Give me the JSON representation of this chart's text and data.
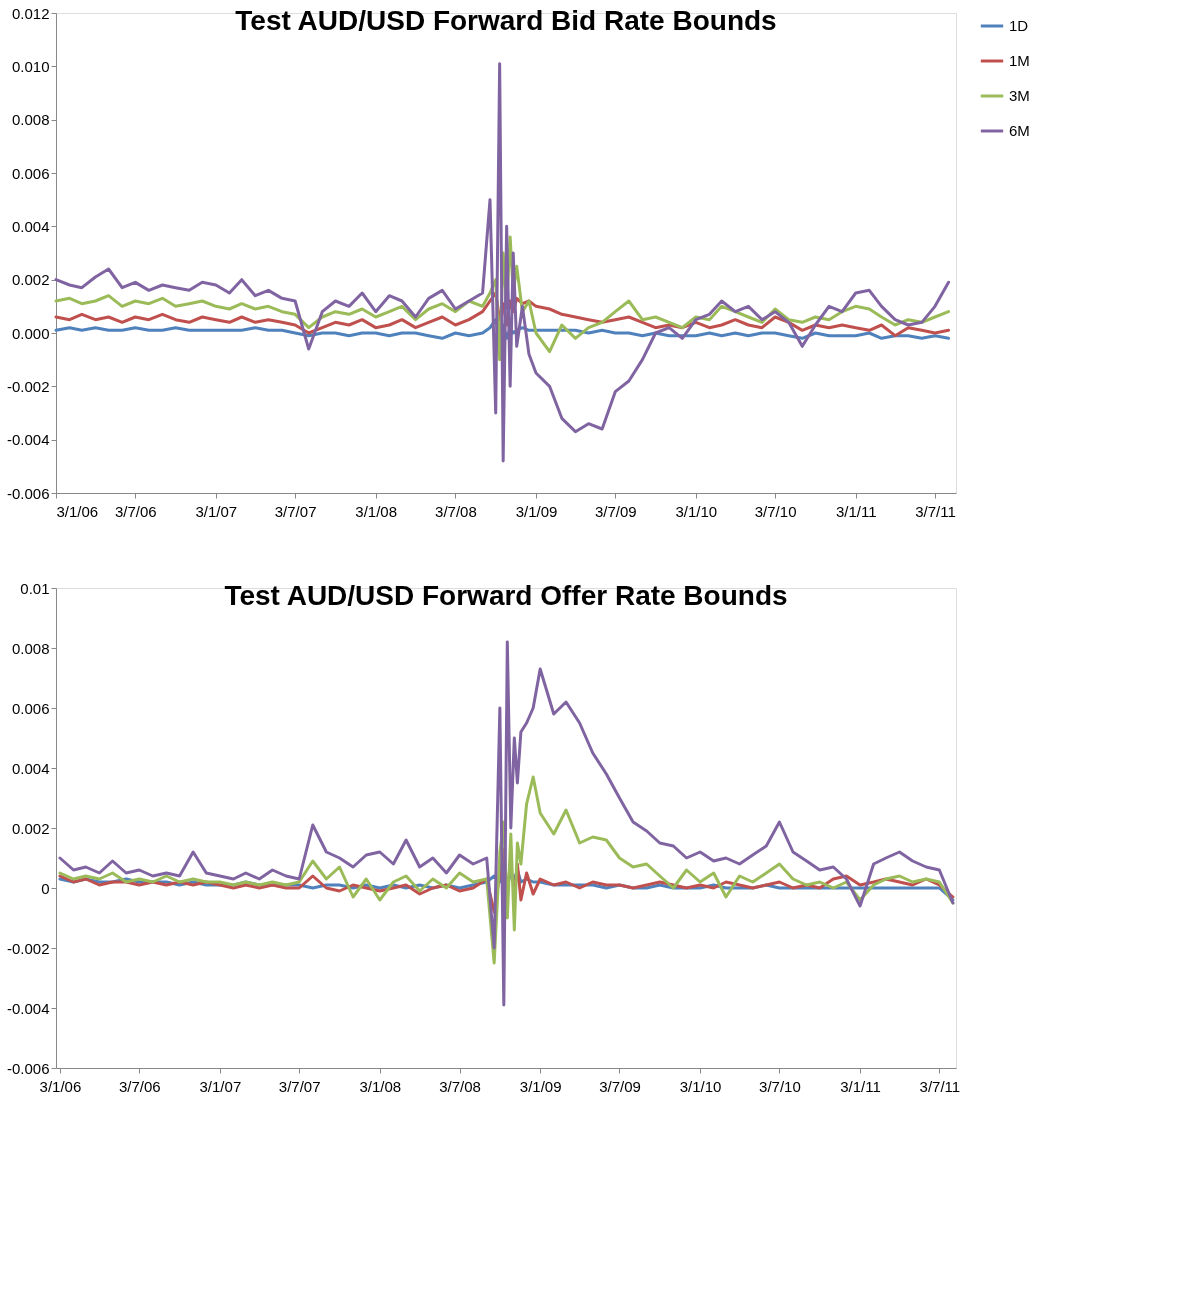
{
  "chart_data": [
    {
      "type": "line",
      "title": "Test AUD/USD Forward Bid Rate Bounds",
      "x": [
        "2006-01-03",
        "2006-02-03",
        "2006-03-03",
        "2006-04-03",
        "2006-05-03",
        "2006-06-03",
        "2006-07-03",
        "2006-08-03",
        "2006-09-03",
        "2006-10-03",
        "2006-11-03",
        "2006-12-03",
        "2007-01-03",
        "2007-02-03",
        "2007-03-03",
        "2007-04-03",
        "2007-05-03",
        "2007-06-03",
        "2007-07-03",
        "2007-08-03",
        "2007-09-03",
        "2007-10-03",
        "2007-11-03",
        "2007-12-03",
        "2008-01-03",
        "2008-02-03",
        "2008-03-03",
        "2008-04-03",
        "2008-05-03",
        "2008-06-03",
        "2008-07-03",
        "2008-08-03",
        "2008-09-03",
        "2008-09-20",
        "2008-10-03",
        "2008-10-12",
        "2008-10-20",
        "2008-10-28",
        "2008-11-05",
        "2008-11-12",
        "2008-11-20",
        "2008-12-03",
        "2008-12-18",
        "2009-01-03",
        "2009-02-03",
        "2009-03-03",
        "2009-04-03",
        "2009-05-03",
        "2009-06-03",
        "2009-07-03",
        "2009-08-03",
        "2009-09-03",
        "2009-10-03",
        "2009-11-03",
        "2009-12-03",
        "2010-01-03",
        "2010-02-03",
        "2010-03-03",
        "2010-04-03",
        "2010-05-03",
        "2010-06-03",
        "2010-07-03",
        "2010-08-03",
        "2010-09-03",
        "2010-10-03",
        "2010-11-03",
        "2010-12-03",
        "2011-01-03",
        "2011-02-03",
        "2011-03-03",
        "2011-04-03",
        "2011-05-03",
        "2011-06-03",
        "2011-07-03",
        "2011-08-03"
      ],
      "series": [
        {
          "name": "1D",
          "color": "#4f81bd",
          "values": [
            0.0001,
            0.0002,
            0.0001,
            0.0002,
            0.0001,
            0.0001,
            0.0002,
            0.0001,
            0.0001,
            0.0002,
            0.0001,
            0.0001,
            0.0001,
            0.0001,
            0.0001,
            0.0002,
            0.0001,
            0.0001,
            0.0,
            -0.0001,
            0.0,
            0.0,
            -0.0001,
            0.0,
            0.0,
            -0.0001,
            0.0,
            0.0,
            -0.0001,
            -0.0002,
            0.0,
            -0.0001,
            0.0,
            0.0002,
            0.0005,
            -0.0003,
            0.0003,
            -0.0002,
            0.0002,
            0.0,
            0.0001,
            0.0002,
            0.0001,
            0.0001,
            0.0001,
            0.0001,
            0.0001,
            0.0,
            0.0001,
            0.0,
            0.0,
            -0.0001,
            0.0,
            -0.0001,
            -0.0001,
            -0.0001,
            0.0,
            -0.0001,
            0.0,
            -0.0001,
            0.0,
            0.0,
            -0.0001,
            -0.0002,
            0.0,
            -0.0001,
            -0.0001,
            -0.0001,
            0.0,
            -0.0002,
            -0.0001,
            -0.0001,
            -0.0002,
            -0.0001,
            -0.0002
          ]
        },
        {
          "name": "1M",
          "color": "#c0504d",
          "values": [
            0.0006,
            0.0005,
            0.0007,
            0.0005,
            0.0006,
            0.0004,
            0.0006,
            0.0005,
            0.0007,
            0.0005,
            0.0004,
            0.0006,
            0.0005,
            0.0004,
            0.0006,
            0.0004,
            0.0005,
            0.0004,
            0.0003,
            0.0,
            0.0002,
            0.0004,
            0.0003,
            0.0005,
            0.0002,
            0.0003,
            0.0005,
            0.0002,
            0.0004,
            0.0006,
            0.0003,
            0.0005,
            0.0008,
            0.0012,
            0.0015,
            0.0005,
            0.0011,
            0.0003,
            0.0012,
            0.0008,
            0.0013,
            0.0011,
            0.0012,
            0.001,
            0.0009,
            0.0007,
            0.0006,
            0.0005,
            0.0004,
            0.0005,
            0.0006,
            0.0004,
            0.0002,
            0.0003,
            0.0002,
            0.0004,
            0.0002,
            0.0003,
            0.0005,
            0.0003,
            0.0002,
            0.0006,
            0.0004,
            0.0001,
            0.0003,
            0.0002,
            0.0003,
            0.0002,
            0.0001,
            0.0003,
            -0.0001,
            0.0002,
            0.0001,
            0.0,
            0.0001
          ]
        },
        {
          "name": "3M",
          "color": "#9bbb59",
          "values": [
            0.0012,
            0.0013,
            0.0011,
            0.0012,
            0.0014,
            0.001,
            0.0012,
            0.0011,
            0.0013,
            0.001,
            0.0011,
            0.0012,
            0.001,
            0.0009,
            0.0011,
            0.0009,
            0.001,
            0.0008,
            0.0007,
            0.0002,
            0.0006,
            0.0008,
            0.0007,
            0.0009,
            0.0006,
            0.0008,
            0.001,
            0.0005,
            0.0009,
            0.0011,
            0.0008,
            0.0012,
            0.001,
            0.0015,
            0.002,
            -0.001,
            0.003,
            0.001,
            0.0036,
            0.0015,
            0.0025,
            0.0008,
            0.0012,
            0.0,
            -0.0007,
            0.0003,
            -0.0002,
            0.0002,
            0.0004,
            0.0008,
            0.0012,
            0.0005,
            0.0006,
            0.0004,
            0.0002,
            0.0006,
            0.0005,
            0.001,
            0.0008,
            0.0006,
            0.0004,
            0.0009,
            0.0005,
            0.0004,
            0.0006,
            0.0005,
            0.0008,
            0.001,
            0.0009,
            0.0006,
            0.0003,
            0.0005,
            0.0004,
            0.0006,
            0.0008
          ]
        },
        {
          "name": "6M",
          "color": "#8064a2",
          "values": [
            0.002,
            0.0018,
            0.0017,
            0.0021,
            0.0024,
            0.0017,
            0.0019,
            0.0016,
            0.0018,
            0.0017,
            0.0016,
            0.0019,
            0.0018,
            0.0015,
            0.002,
            0.0014,
            0.0016,
            0.0013,
            0.0012,
            -0.0006,
            0.0008,
            0.0012,
            0.001,
            0.0015,
            0.0008,
            0.0014,
            0.0012,
            0.0006,
            0.0013,
            0.0016,
            0.0009,
            0.0012,
            0.0015,
            0.005,
            -0.003,
            0.0101,
            -0.0048,
            0.004,
            -0.002,
            0.003,
            -0.0005,
            0.001,
            -0.0008,
            -0.0015,
            -0.002,
            -0.0032,
            -0.0037,
            -0.0034,
            -0.0036,
            -0.0022,
            -0.0018,
            -0.001,
            0.0,
            0.0002,
            -0.0002,
            0.0005,
            0.0007,
            0.0012,
            0.0008,
            0.001,
            0.0005,
            0.0008,
            0.0004,
            -0.0005,
            0.0003,
            0.001,
            0.0008,
            0.0015,
            0.0016,
            0.001,
            0.0005,
            0.0003,
            0.0004,
            0.001,
            0.0019
          ]
        }
      ],
      "xlim": [
        "2006-01-03",
        "2011-08-20"
      ],
      "xticks": [
        {
          "value": "2006-01-03",
          "label": "3/1/06"
        },
        {
          "value": "2006-07-03",
          "label": "3/7/06"
        },
        {
          "value": "2007-01-03",
          "label": "3/1/07"
        },
        {
          "value": "2007-07-03",
          "label": "3/7/07"
        },
        {
          "value": "2008-01-03",
          "label": "3/1/08"
        },
        {
          "value": "2008-07-03",
          "label": "3/7/08"
        },
        {
          "value": "2009-01-03",
          "label": "3/1/09"
        },
        {
          "value": "2009-07-03",
          "label": "3/7/09"
        },
        {
          "value": "2010-01-03",
          "label": "3/1/10"
        },
        {
          "value": "2010-07-03",
          "label": "3/7/10"
        },
        {
          "value": "2011-01-03",
          "label": "3/1/11"
        },
        {
          "value": "2011-07-03",
          "label": "3/7/11"
        }
      ],
      "ylim": [
        -0.006,
        0.012
      ],
      "yticks": [
        {
          "value": -0.006,
          "label": "-0.006"
        },
        {
          "value": -0.004,
          "label": "-0.004"
        },
        {
          "value": -0.002,
          "label": "-0.002"
        },
        {
          "value": 0,
          "label": "0.000"
        },
        {
          "value": 0.002,
          "label": "0.002"
        },
        {
          "value": 0.004,
          "label": "0.004"
        },
        {
          "value": 0.006,
          "label": "0.006"
        },
        {
          "value": 0.008,
          "label": "0.008"
        },
        {
          "value": 0.01,
          "label": "0.010"
        },
        {
          "value": 0.012,
          "label": "0.012"
        }
      ],
      "grid": false,
      "legend": "right"
    },
    {
      "type": "line",
      "title": "Test AUD/USD Forward Offer Rate Bounds",
      "x": [
        "2006-01-03",
        "2006-02-03",
        "2006-03-03",
        "2006-04-03",
        "2006-05-03",
        "2006-06-03",
        "2006-07-03",
        "2006-08-03",
        "2006-09-03",
        "2006-10-03",
        "2006-11-03",
        "2006-12-03",
        "2007-01-03",
        "2007-02-03",
        "2007-03-03",
        "2007-04-03",
        "2007-05-03",
        "2007-06-03",
        "2007-07-03",
        "2007-08-03",
        "2007-09-03",
        "2007-10-03",
        "2007-11-03",
        "2007-12-03",
        "2008-01-03",
        "2008-02-03",
        "2008-03-03",
        "2008-04-03",
        "2008-05-03",
        "2008-06-03",
        "2008-07-03",
        "2008-08-03",
        "2008-09-03",
        "2008-09-20",
        "2008-10-03",
        "2008-10-12",
        "2008-10-20",
        "2008-10-28",
        "2008-11-05",
        "2008-11-12",
        "2008-11-20",
        "2008-12-03",
        "2008-12-18",
        "2009-01-03",
        "2009-02-03",
        "2009-03-03",
        "2009-04-03",
        "2009-05-03",
        "2009-06-03",
        "2009-07-03",
        "2009-08-03",
        "2009-09-03",
        "2009-10-03",
        "2009-11-03",
        "2009-12-03",
        "2010-01-03",
        "2010-02-03",
        "2010-03-03",
        "2010-04-03",
        "2010-05-03",
        "2010-06-03",
        "2010-07-03",
        "2010-08-03",
        "2010-09-03",
        "2010-10-03",
        "2010-11-03",
        "2010-12-03",
        "2011-01-03",
        "2011-02-03",
        "2011-03-03",
        "2011-04-03",
        "2011-05-03",
        "2011-06-03",
        "2011-07-03",
        "2011-08-03"
      ],
      "series": [
        {
          "name": "1D",
          "color": "#4f81bd",
          "values": [
            0.0003,
            0.0002,
            0.0003,
            0.0002,
            0.0002,
            0.0003,
            0.0002,
            0.0002,
            0.0002,
            0.0001,
            0.0002,
            0.0001,
            0.0001,
            0.0001,
            0.0002,
            0.0001,
            0.0001,
            0.0001,
            0.0001,
            0.0,
            0.0001,
            0.0001,
            0.0,
            0.0001,
            0.0,
            0.0001,
            0.0,
            0.0001,
            0.0,
            0.0001,
            0.0,
            0.0001,
            0.0002,
            0.0004,
            0.0002,
            0.0008,
            0.0001,
            0.0005,
            0.0003,
            0.0006,
            0.0002,
            0.0003,
            0.0002,
            0.0002,
            0.0001,
            0.0001,
            0.0001,
            0.0001,
            0.0,
            0.0001,
            0.0,
            0.0,
            0.0001,
            0.0,
            0.0,
            0.0,
            0.0001,
            0.0,
            0.0,
            0.0,
            0.0001,
            0.0,
            0.0,
            0.0,
            0.0,
            0.0,
            0.0,
            0.0,
            0.0,
            0.0,
            0.0,
            0.0,
            0.0,
            0.0,
            -0.0004
          ]
        },
        {
          "name": "1M",
          "color": "#c0504d",
          "values": [
            0.0004,
            0.0002,
            0.0003,
            0.0001,
            0.0002,
            0.0002,
            0.0001,
            0.0002,
            0.0001,
            0.0002,
            0.0001,
            0.0002,
            0.0001,
            0.0,
            0.0001,
            0.0,
            0.0001,
            0.0,
            0.0,
            0.0004,
            0.0,
            -0.0001,
            0.0001,
            0.0,
            -0.0001,
            0.0,
            0.0001,
            -0.0002,
            0.0,
            0.0001,
            -0.0001,
            0.0,
            0.0003,
            -0.0008,
            0.0005,
            0.0013,
            -0.0002,
            null,
            -0.0003,
            0.0008,
            -0.0004,
            0.0005,
            -0.0002,
            0.0003,
            0.0001,
            0.0002,
            0.0,
            0.0002,
            0.0001,
            0.0001,
            0.0,
            0.0001,
            0.0002,
            0.0001,
            0.0,
            0.0001,
            0.0,
            0.0002,
            0.0001,
            0.0,
            0.0001,
            0.0002,
            0.0,
            0.0001,
            0.0,
            0.0003,
            0.0004,
            0.0001,
            0.0002,
            0.0003,
            0.0002,
            0.0001,
            0.0003,
            0.0001,
            -0.0003
          ]
        },
        {
          "name": "3M",
          "color": "#9bbb59",
          "values": [
            0.0005,
            0.0003,
            0.0004,
            0.0003,
            0.0005,
            0.0002,
            0.0003,
            0.0002,
            0.0004,
            0.0002,
            0.0003,
            0.0002,
            0.0002,
            0.0001,
            0.0002,
            0.0001,
            0.0002,
            0.0001,
            0.0002,
            0.0009,
            0.0003,
            0.0007,
            -0.0003,
            0.0003,
            -0.0004,
            0.0002,
            0.0004,
            -0.0001,
            0.0003,
            0.0,
            0.0005,
            0.0002,
            0.0003,
            -0.0025,
            0.0012,
            0.0022,
            -0.001,
            0.0018,
            -0.0014,
            0.0015,
            0.0008,
            0.0028,
            0.0037,
            0.0025,
            0.0018,
            0.0026,
            0.0015,
            0.0017,
            0.0016,
            0.001,
            0.0007,
            0.0008,
            0.0004,
            0.0,
            0.0006,
            0.0002,
            0.0005,
            -0.0003,
            0.0004,
            0.0002,
            0.0005,
            0.0008,
            0.0003,
            0.0001,
            0.0002,
            0.0,
            0.0002,
            -0.0004,
            0.0001,
            0.0003,
            0.0004,
            0.0002,
            0.0003,
            0.0002,
            -0.0005
          ]
        },
        {
          "name": "6M",
          "color": "#8064a2",
          "values": [
            0.001,
            0.0006,
            0.0007,
            0.0005,
            0.0009,
            0.0005,
            0.0006,
            0.0004,
            0.0005,
            0.0004,
            0.0012,
            0.0005,
            0.0004,
            0.0003,
            0.0005,
            0.0003,
            0.0006,
            0.0004,
            0.0003,
            0.0021,
            0.0012,
            0.001,
            0.0007,
            0.0011,
            0.0012,
            0.0008,
            0.0016,
            0.0007,
            0.001,
            0.0005,
            0.0011,
            0.0008,
            0.001,
            -0.002,
            0.006,
            -0.0039,
            0.0082,
            0.002,
            0.005,
            0.0035,
            0.0052,
            0.0055,
            0.006,
            0.0073,
            0.0058,
            0.0062,
            0.0055,
            0.0045,
            0.0038,
            0.003,
            0.0022,
            0.0019,
            0.0015,
            0.0014,
            0.001,
            0.0012,
            0.0009,
            0.001,
            0.0008,
            0.0011,
            0.0014,
            0.0022,
            0.0012,
            0.0009,
            0.0006,
            0.0007,
            0.0003,
            -0.0006,
            0.0008,
            0.001,
            0.0012,
            0.0009,
            0.0007,
            0.0006,
            -0.0005
          ]
        }
      ],
      "xlim": [
        "2005-12-25",
        "2011-08-10"
      ],
      "xticks": [
        {
          "value": "2006-01-03",
          "label": "3/1/06"
        },
        {
          "value": "2006-07-03",
          "label": "3/7/06"
        },
        {
          "value": "2007-01-03",
          "label": "3/1/07"
        },
        {
          "value": "2007-07-03",
          "label": "3/7/07"
        },
        {
          "value": "2008-01-03",
          "label": "3/1/08"
        },
        {
          "value": "2008-07-03",
          "label": "3/7/08"
        },
        {
          "value": "2009-01-03",
          "label": "3/1/09"
        },
        {
          "value": "2009-07-03",
          "label": "3/7/09"
        },
        {
          "value": "2010-01-03",
          "label": "3/1/10"
        },
        {
          "value": "2010-07-03",
          "label": "3/7/10"
        },
        {
          "value": "2011-01-03",
          "label": "3/1/11"
        },
        {
          "value": "2011-07-03",
          "label": "3/7/11"
        }
      ],
      "ylim": [
        -0.006,
        0.01
      ],
      "yticks": [
        -0.006,
        -0.004,
        -0.002,
        0,
        0.002,
        0.004,
        0.006,
        0.008,
        0.01
      ],
      "grid": false,
      "legend": "right"
    }
  ]
}
